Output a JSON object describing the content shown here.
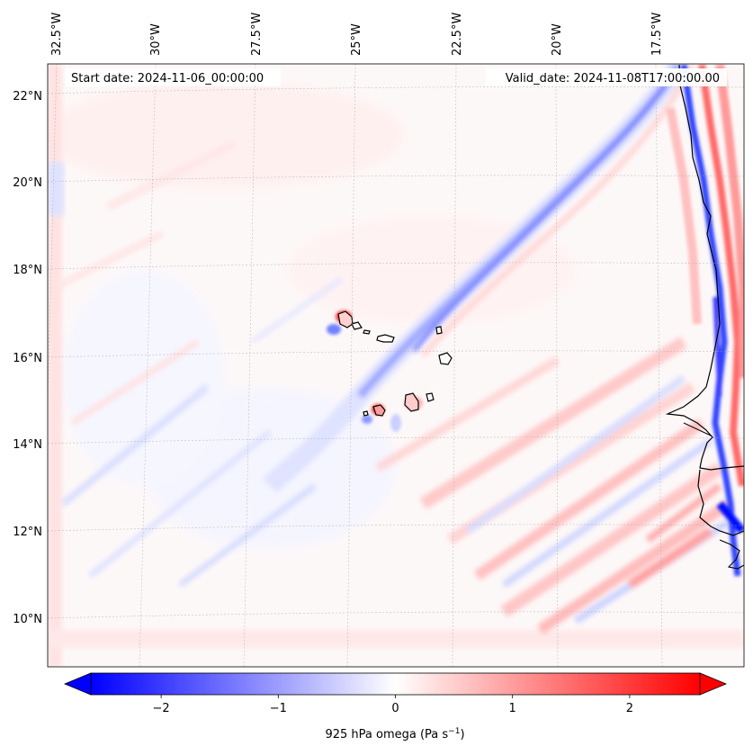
{
  "map": {
    "start_label": "Start date: 2024-11-06_00:00:00",
    "valid_label": "Valid_date: 2024-11-08T17:00:00.00",
    "lon_labels": [
      "32.5°W",
      "30°W",
      "27.5°W",
      "25°W",
      "22.5°W",
      "20°W",
      "17.5°W"
    ],
    "lat_labels": [
      "22°N",
      "20°N",
      "18°N",
      "16°N",
      "14°N",
      "12°N",
      "10°N"
    ],
    "gridlines": true
  },
  "colorbar": {
    "label": "925 hPa omega (Pa s",
    "label_sup": "−1",
    "label_end": ")",
    "ticks": [
      "−2",
      "−1",
      "0",
      "1",
      "2"
    ],
    "tick_values": [
      -2,
      -1,
      0,
      1,
      2
    ],
    "range": [
      -2.6,
      2.6
    ],
    "colormap": "bwr",
    "extend": "both",
    "low_color": "#0000ff",
    "mid_color": "#ffffff",
    "high_color": "#ff0000"
  }
}
